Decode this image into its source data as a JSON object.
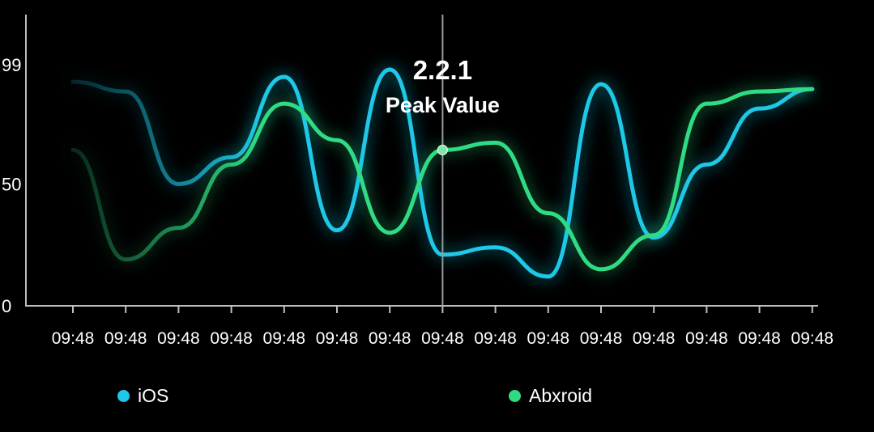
{
  "chart_data": {
    "type": "line",
    "categories": [
      "09:48",
      "09:48",
      "09:48",
      "09:48",
      "09:48",
      "09:48",
      "09:48",
      "09:48",
      "09:48",
      "09:48",
      "09:48",
      "09:48",
      "09:48",
      "09:48",
      "09:48"
    ],
    "series": [
      {
        "name": "iOS",
        "color": "#1ec8e6",
        "values": [
          92,
          88,
          50,
          61,
          94,
          31,
          97,
          21,
          24,
          12,
          91,
          28,
          58,
          81,
          89
        ]
      },
      {
        "name": "Abxroid",
        "color": "#2fdc84",
        "values": [
          64,
          19,
          32,
          58,
          83,
          68,
          30,
          64,
          67,
          38,
          15,
          29,
          83,
          88,
          89
        ]
      }
    ],
    "yticks": [
      "0",
      "50",
      "99"
    ],
    "ylim": [
      0,
      99
    ],
    "grid": false,
    "legend_position": "bottom",
    "tooltip": {
      "title": "2.2.1",
      "subtitle": "Peak Value",
      "category_index": 7
    }
  }
}
